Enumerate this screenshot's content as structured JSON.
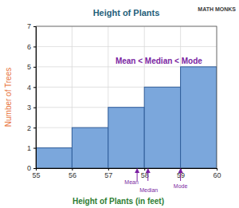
{
  "chart_data": {
    "type": "histogram",
    "title": "Height of Plants",
    "logo": "MATH MONKS",
    "x_label": "Height of Plants (in feet)",
    "y_label": "Number of Trees",
    "bins": [
      55,
      56,
      57,
      58,
      59,
      60
    ],
    "values": [
      1,
      2,
      3,
      4,
      5
    ],
    "color": "#7ba7dc",
    "xlim": [
      55,
      60
    ],
    "xticks": [
      55,
      56,
      57,
      58,
      59,
      60
    ],
    "ylim": [
      0,
      7
    ],
    "yticks": [
      0,
      1,
      2,
      3,
      4,
      5,
      6,
      7
    ],
    "grid": true,
    "annotations": [
      {
        "text": "Mean < Median < Mode"
      }
    ],
    "markers": [
      {
        "label": "Mean",
        "x": 57.8
      },
      {
        "label": "Median",
        "x": 58.1
      },
      {
        "label": "Mode",
        "x": 59
      }
    ]
  }
}
